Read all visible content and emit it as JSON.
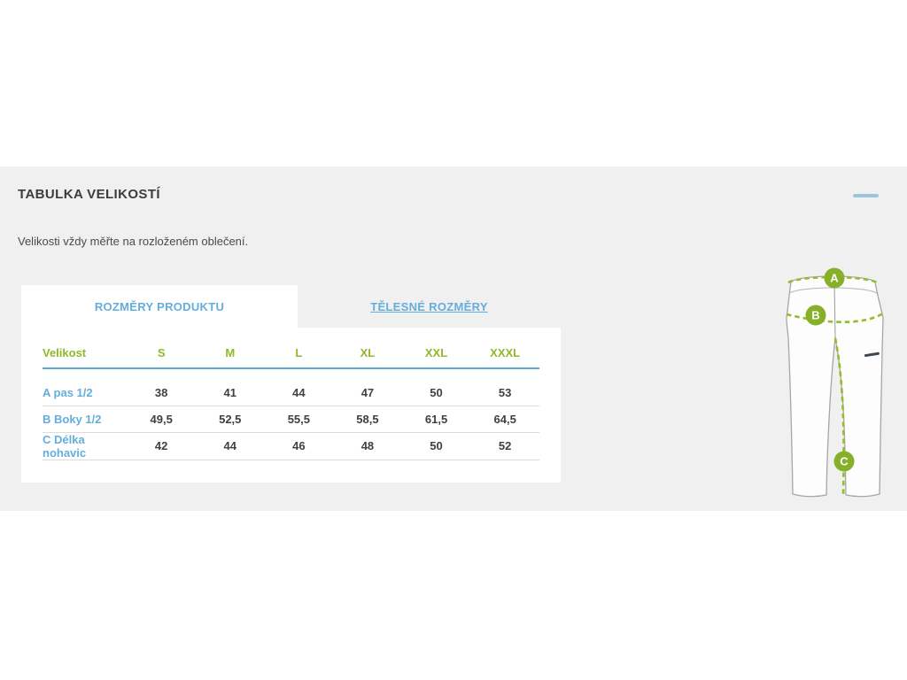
{
  "panel": {
    "title": "TABULKA VELIKOSTÍ",
    "subtitle": "Velikosti vždy měřte na rozloženém oblečení.",
    "background": "#f0f0f0"
  },
  "tabs": [
    {
      "label": "ROZMĚRY PRODUKTU",
      "active": true
    },
    {
      "label": "TĚLESNÉ ROZMĚRY",
      "active": false
    }
  ],
  "size_table": {
    "columns": [
      "Velikost",
      "S",
      "M",
      "L",
      "XL",
      "XXL",
      "XXXL"
    ],
    "rows": [
      {
        "label": "A pas 1/2",
        "values": [
          "38",
          "41",
          "44",
          "47",
          "50",
          "53"
        ]
      },
      {
        "label": "B Boky 1/2",
        "values": [
          "49,5",
          "52,5",
          "55,5",
          "58,5",
          "61,5",
          "64,5"
        ]
      },
      {
        "label": "C Délka nohavic",
        "values": [
          "42",
          "44",
          "46",
          "48",
          "50",
          "52"
        ]
      }
    ]
  },
  "diagram": {
    "markers": [
      "A",
      "B",
      "C"
    ],
    "marker_color": "#86b02a",
    "dash_color": "#94bc2b",
    "outline_color": "#a6a6a6"
  },
  "colors": {
    "accent_green": "#8fb92a",
    "accent_blue": "#64aede",
    "header_underline": "#5fa9d5",
    "collapse_bar": "#9cc6de",
    "title_text": "#3c3c3c",
    "value_text": "#404040",
    "row_separator": "#dcdcdc"
  }
}
